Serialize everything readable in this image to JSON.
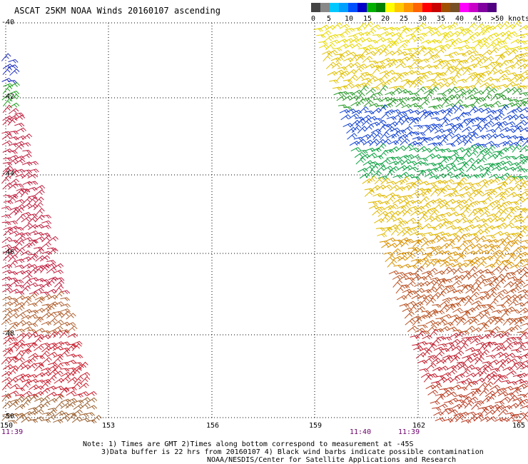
{
  "title": "ASCAT 25KM NOAA Winds 20160107 ascending",
  "colorbar": {
    "labels": [
      "0",
      "5",
      "10",
      "15",
      "20",
      "25",
      "30",
      "35",
      "40",
      "45",
      ">50 knots"
    ],
    "colors": [
      "#444444",
      "#888888",
      "#00c8ff",
      "#00a0ff",
      "#0050ff",
      "#0000c8",
      "#00b000",
      "#008000",
      "#ffff00",
      "#ffc800",
      "#ff9600",
      "#ff6400",
      "#ff0000",
      "#c80000",
      "#a05000",
      "#785028",
      "#ff00ff",
      "#c800c8",
      "#8000a0",
      "#500080"
    ]
  },
  "lat_labels": [
    "-40",
    "-42",
    "-44",
    "-46",
    "-48",
    "-50"
  ],
  "lon_labels": [
    "150",
    "153",
    "156",
    "159",
    "162",
    "165"
  ],
  "time_labels": [
    "11:39",
    "11:40",
    "11:39"
  ],
  "notes": [
    "Note: 1) Times are GMT 2)Times along bottom correspond to measurement at -45S",
    "3)Data buffer is 22 hrs from 20160107 4) Black wind barbs indicate possible contamination",
    "NOAA/NESDIS/Center for Satellite Applications and Research"
  ]
}
